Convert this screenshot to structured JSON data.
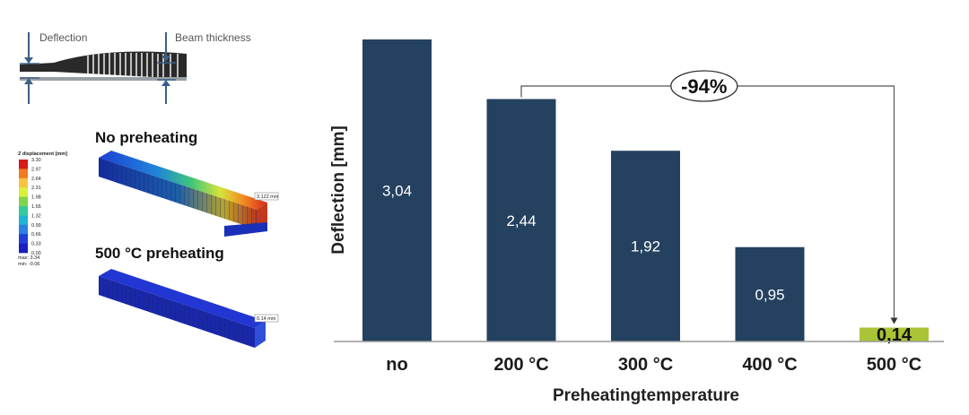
{
  "diagram": {
    "label_deflection": "Deflection",
    "label_beam_thickness": "Beam thickness"
  },
  "simulation": {
    "title_no": "No preheating",
    "title_500": "500 °C preheating",
    "legend_title": "Z displacement [mm]",
    "legend_values": [
      "3.30",
      "2.97",
      "2.64",
      "2.31",
      "1.98",
      "1.65",
      "1.32",
      "0.99",
      "0.66",
      "0.33",
      "0.00"
    ],
    "legend_max": "max: 3.34",
    "legend_min": "min: -0.06",
    "callout_no": "3.122 mm",
    "callout_500": "0.14 mm",
    "colors": [
      "#d7191c",
      "#f07b20",
      "#f6c344",
      "#d9ef3a",
      "#7fd34e",
      "#35c89a",
      "#1fb3d6",
      "#2b7fe0",
      "#1f3fd8",
      "#1a1fbf"
    ]
  },
  "chart_data": {
    "type": "bar",
    "categories": [
      "no",
      "200 °C",
      "300 °C",
      "400 °C",
      "500 °C"
    ],
    "values": [
      3.04,
      2.44,
      1.92,
      0.95,
      0.14
    ],
    "value_labels": [
      "3,04",
      "2,44",
      "1,92",
      "0,95",
      "0,14"
    ],
    "xlabel": "Preheatingtemperature",
    "ylabel": "Deflection [mm]",
    "ylim": [
      0,
      3.04
    ],
    "grid": false,
    "bar_color": "#24425f",
    "highlight_color": "#a9c437",
    "highlight_index": 4,
    "annotation": {
      "text": "-94%",
      "from_category": "200 °C",
      "to_category": "500 °C"
    }
  }
}
